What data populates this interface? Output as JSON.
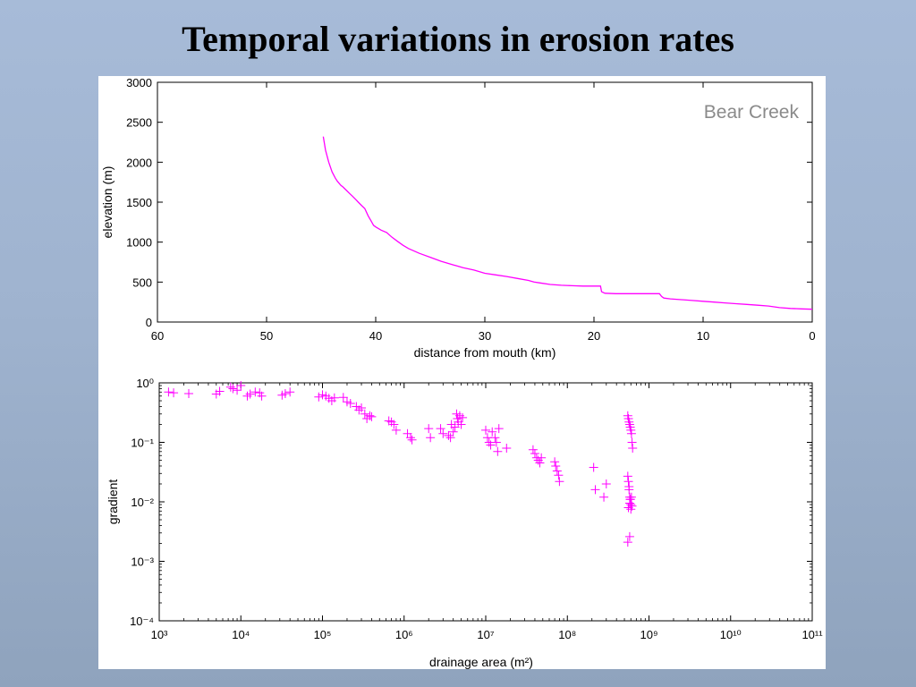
{
  "slide": {
    "title": "Temporal variations in erosion rates"
  },
  "chart_data": [
    {
      "type": "line",
      "annotation": "Bear Creek",
      "xlabel": "distance from mouth (km)",
      "ylabel": "elevation (m)",
      "xlim": [
        60,
        0
      ],
      "ylim": [
        0,
        3000
      ],
      "x_reversed": true,
      "xticks": [
        60,
        50,
        40,
        30,
        20,
        10,
        0
      ],
      "yticks": [
        0,
        500,
        1000,
        1500,
        2000,
        2500,
        3000
      ],
      "color": "#ff00ff",
      "grid": false,
      "series": [
        {
          "x": [
            44.8,
            44.6,
            44.3,
            44.0,
            43.7,
            43.5,
            43.2,
            43.0,
            42.7,
            42.4,
            42.1,
            41.8,
            41.6,
            41.3,
            41.0,
            40.7,
            40.4,
            40.2,
            40.0,
            39.5,
            39.0,
            38.5,
            38.0,
            37.5,
            37.0,
            36.0,
            35.0,
            34.0,
            33.0,
            32.0,
            31.0,
            30.0,
            29.0,
            28.0,
            27.0,
            26.0,
            25.5,
            25.0,
            24.0,
            23.0,
            22.0,
            21.0,
            20.0,
            19.4,
            19.3,
            19.0,
            18.0,
            17.0,
            16.0,
            15.0,
            14.0,
            13.8,
            13.6,
            13.0,
            12.0,
            11.0,
            10.0,
            9.0,
            8.0,
            7.0,
            6.0,
            5.0,
            4.0,
            3.5,
            3.0,
            2.0,
            1.0,
            0.0
          ],
          "y": [
            2320,
            2150,
            2000,
            1880,
            1800,
            1760,
            1710,
            1690,
            1650,
            1610,
            1570,
            1530,
            1500,
            1460,
            1420,
            1330,
            1260,
            1210,
            1190,
            1150,
            1120,
            1060,
            1010,
            960,
            920,
            860,
            810,
            760,
            720,
            680,
            650,
            610,
            590,
            570,
            545,
            520,
            500,
            490,
            470,
            460,
            455,
            450,
            450,
            450,
            380,
            360,
            355,
            355,
            355,
            355,
            355,
            320,
            300,
            290,
            280,
            270,
            260,
            250,
            240,
            230,
            220,
            210,
            200,
            190,
            180,
            170,
            165,
            160
          ]
        }
      ]
    },
    {
      "type": "scatter",
      "marker": "+",
      "xlabel": "drainage area (m²)",
      "ylabel": "gradient",
      "xscale": "log",
      "yscale": "log",
      "xlim": [
        1000,
        100000000000
      ],
      "ylim": [
        0.0001,
        1
      ],
      "xtick_exponents": [
        3,
        4,
        5,
        6,
        7,
        8,
        9,
        10,
        11
      ],
      "ytick_exponents": [
        0,
        -1,
        -2,
        -3,
        -4
      ],
      "color": "#ff00ff",
      "grid": false,
      "series": [
        {
          "x": [
            1300,
            1500,
            2300,
            5000,
            5500,
            7500,
            8000,
            9000,
            10000,
            12000,
            13000,
            15000,
            17000,
            18000,
            32000,
            35000,
            40000,
            90000,
            100000,
            110000,
            120000,
            130000,
            140000,
            180000,
            200000,
            220000,
            260000,
            280000,
            300000,
            330000,
            350000,
            380000,
            400000,
            650000,
            700000,
            750000,
            800000,
            1100000,
            1200000,
            1250000,
            2000000,
            2100000,
            2800000,
            3000000,
            3500000,
            3700000,
            3800000,
            4000000,
            4200000,
            4400000,
            4500000,
            4600000,
            4800000,
            5000000,
            5200000,
            10000000,
            10500000,
            11000000,
            11500000,
            12000000,
            13000000,
            13500000,
            14000000,
            14500000,
            18000000,
            38000000,
            40000000,
            42000000,
            44000000,
            46000000,
            48000000,
            70000000,
            72000000,
            75000000,
            78000000,
            80000000,
            210000000,
            220000000,
            280000000,
            300000000,
            550000000,
            560000000,
            570000000,
            580000000,
            590000000,
            600000000,
            610000000,
            620000000,
            630000000,
            550000000,
            560000000,
            570000000,
            580000000,
            590000000,
            600000000,
            560000000,
            570000000,
            580000000,
            590000000,
            600000000,
            610000000,
            620000000,
            550000000,
            580000000
          ],
          "y": [
            0.7,
            0.68,
            0.66,
            0.65,
            0.72,
            0.85,
            0.8,
            0.75,
            0.9,
            0.6,
            0.65,
            0.7,
            0.68,
            0.6,
            0.62,
            0.66,
            0.7,
            0.58,
            0.63,
            0.6,
            0.55,
            0.5,
            0.56,
            0.57,
            0.48,
            0.45,
            0.4,
            0.35,
            0.38,
            0.3,
            0.25,
            0.28,
            0.27,
            0.23,
            0.22,
            0.2,
            0.16,
            0.14,
            0.12,
            0.11,
            0.17,
            0.12,
            0.17,
            0.14,
            0.13,
            0.12,
            0.2,
            0.15,
            0.18,
            0.3,
            0.25,
            0.22,
            0.28,
            0.2,
            0.26,
            0.16,
            0.12,
            0.1,
            0.09,
            0.15,
            0.12,
            0.1,
            0.07,
            0.17,
            0.08,
            0.075,
            0.065,
            0.055,
            0.05,
            0.045,
            0.055,
            0.047,
            0.04,
            0.033,
            0.028,
            0.022,
            0.038,
            0.016,
            0.012,
            0.02,
            0.28,
            0.25,
            0.22,
            0.2,
            0.18,
            0.16,
            0.14,
            0.1,
            0.08,
            0.027,
            0.022,
            0.016,
            0.012,
            0.011,
            0.009,
            0.008,
            0.018,
            0.0095,
            0.011,
            0.0075,
            0.012,
            0.0085,
            0.0021,
            0.0026
          ]
        }
      ]
    }
  ]
}
